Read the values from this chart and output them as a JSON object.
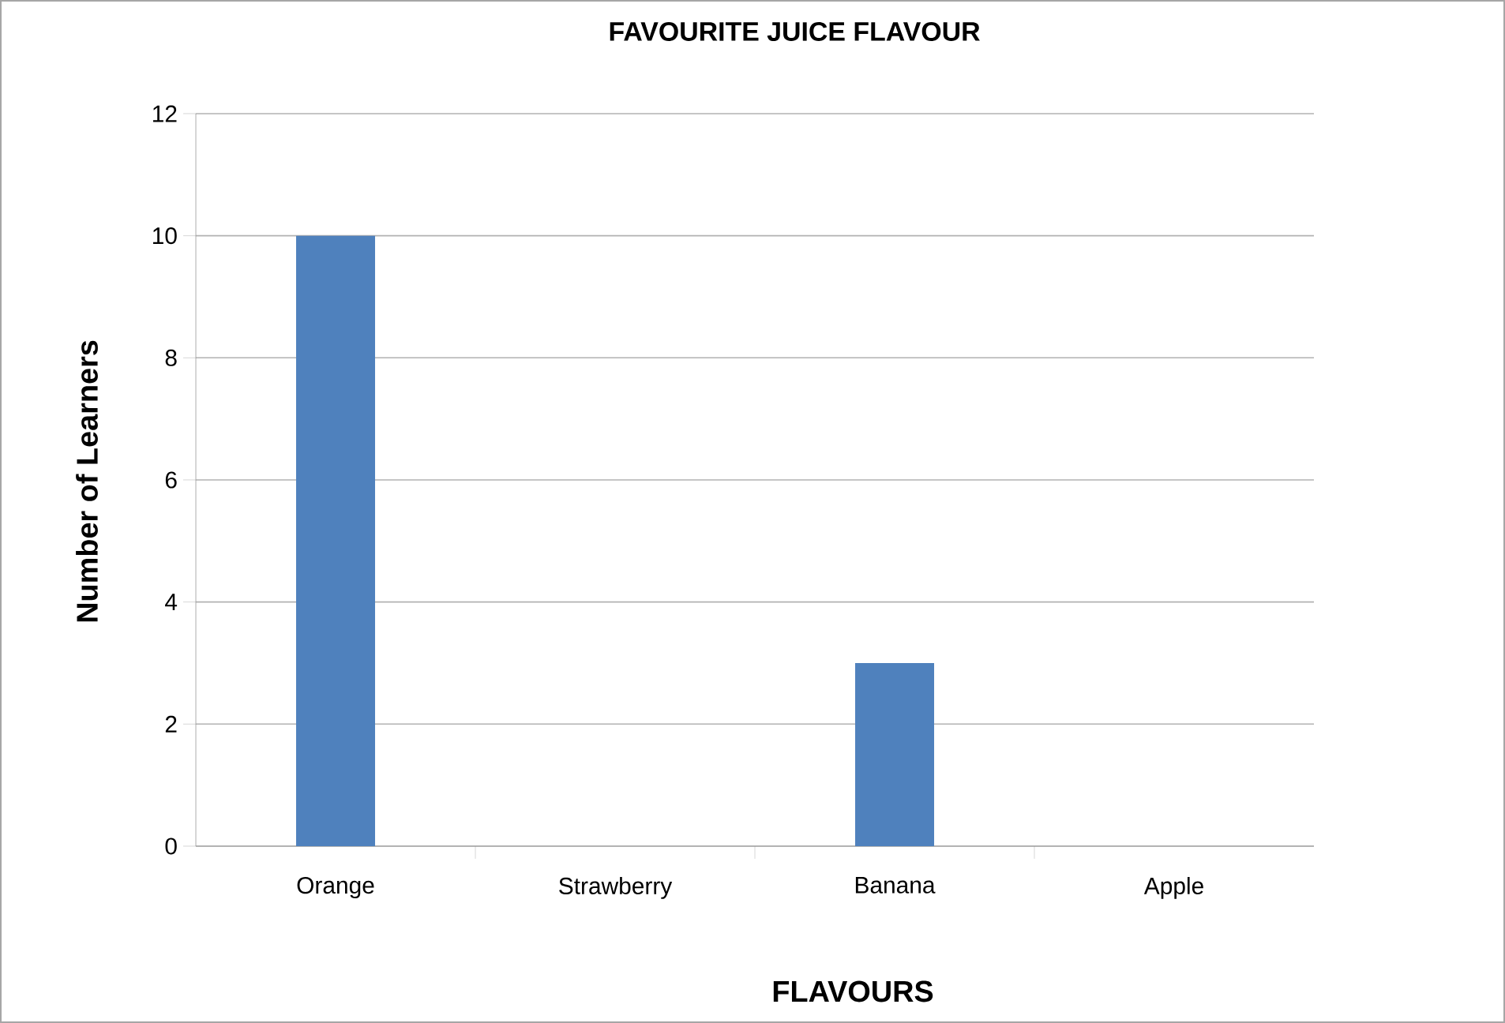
{
  "chart_data": {
    "type": "bar",
    "title": "FAVOURITE  JUICE FLAVOUR",
    "xlabel": "FLAVOURS",
    "ylabel": "Number of Learners",
    "categories": [
      "Orange",
      "Strawberry",
      "Banana",
      "Apple"
    ],
    "values": [
      10,
      0,
      3,
      0
    ],
    "color": "#4f81bd",
    "ylim": [
      0,
      12
    ],
    "yticks": [
      0,
      2,
      4,
      6,
      8,
      10,
      12
    ],
    "grid": "y"
  }
}
